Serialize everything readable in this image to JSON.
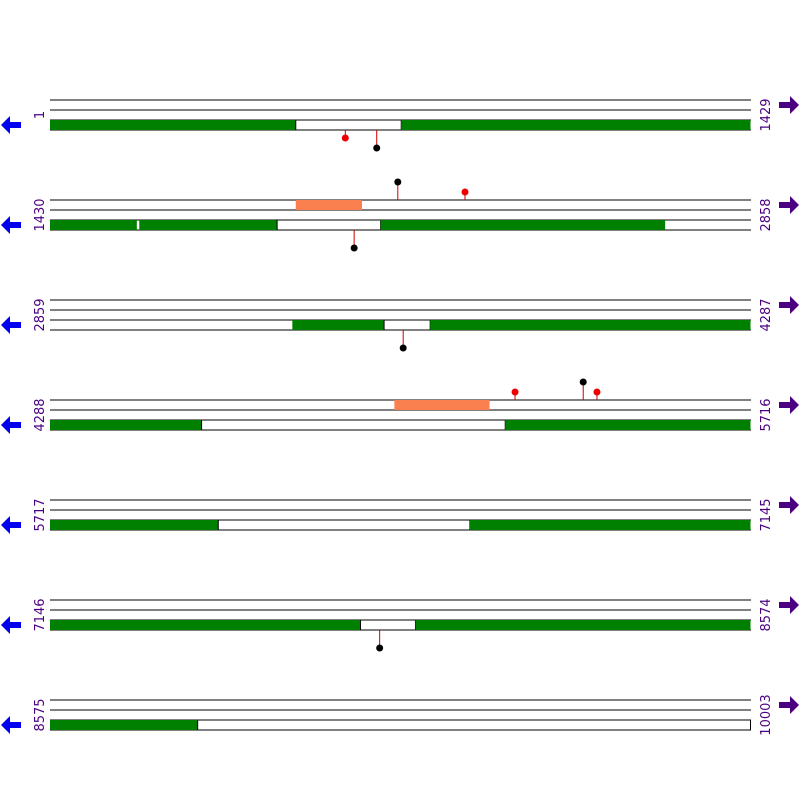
{
  "colors": {
    "background": "#ffffff",
    "track_line": "#000000",
    "segment_green": "#008000",
    "segment_salmon": "#fa8050",
    "stem": "#cc0000",
    "marker_red": "#ee0000",
    "marker_black": "#000000",
    "left_arrow": "#0000ee",
    "right_arrow": "#4b0082",
    "number_text": "#4b0082"
  },
  "icons": {
    "left": "arrow-left-icon",
    "right": "arrow-right-icon"
  },
  "chart_data": {
    "type": "sequence-map",
    "total_length": 10003,
    "rows": [
      {
        "start": 1,
        "end": 1429,
        "tracks": [
          [],
          [],
          [
            {
              "from": 1,
              "to": 502,
              "fill": "green"
            },
            {
              "from": 502,
              "to": 717,
              "fill": "white"
            },
            {
              "from": 717,
              "to": 1429,
              "fill": "green"
            }
          ]
        ],
        "markers": [
          {
            "pos": 603,
            "track": 2,
            "side": "below",
            "length": "short",
            "color": "red"
          },
          {
            "pos": 667,
            "track": 2,
            "side": "below",
            "length": "long",
            "color": "black"
          }
        ]
      },
      {
        "start": 1430,
        "end": 2858,
        "tracks": [
          [
            {
              "from": 1931,
              "to": 2066,
              "fill": "salmon"
            }
          ],
          [],
          [
            {
              "from": 1430,
              "to": 1607,
              "fill": "green"
            },
            {
              "from": 1612,
              "to": 1893,
              "fill": "green"
            },
            {
              "from": 1893,
              "to": 2104,
              "fill": "white"
            },
            {
              "from": 2104,
              "to": 2684,
              "fill": "green"
            }
          ]
        ],
        "markers": [
          {
            "pos": 2139,
            "track": 0,
            "side": "above",
            "length": "long",
            "color": "black"
          },
          {
            "pos": 2276,
            "track": 0,
            "side": "above",
            "length": "short",
            "color": "red"
          },
          {
            "pos": 2050,
            "track": 2,
            "side": "below",
            "length": "long",
            "color": "black"
          }
        ]
      },
      {
        "start": 2859,
        "end": 4287,
        "tracks": [
          [],
          [],
          [
            {
              "from": 3353,
              "to": 3540,
              "fill": "green"
            },
            {
              "from": 3540,
              "to": 3634,
              "fill": "white"
            },
            {
              "from": 3634,
              "to": 4287,
              "fill": "green"
            }
          ]
        ],
        "markers": [
          {
            "pos": 3579,
            "track": 2,
            "side": "below",
            "length": "long",
            "color": "black"
          }
        ]
      },
      {
        "start": 4288,
        "end": 5716,
        "tracks": [
          [
            {
              "from": 4990,
              "to": 5184,
              "fill": "salmon"
            }
          ],
          [],
          [
            {
              "from": 4288,
              "to": 4597,
              "fill": "green"
            },
            {
              "from": 4597,
              "to": 5216,
              "fill": "white"
            },
            {
              "from": 5216,
              "to": 5716,
              "fill": "green"
            }
          ]
        ],
        "markers": [
          {
            "pos": 5236,
            "track": 0,
            "side": "above",
            "length": "short",
            "color": "red"
          },
          {
            "pos": 5375,
            "track": 0,
            "side": "above",
            "length": "long",
            "color": "black"
          },
          {
            "pos": 5403,
            "track": 0,
            "side": "above",
            "length": "short",
            "color": "red"
          }
        ]
      },
      {
        "start": 5717,
        "end": 7145,
        "tracks": [
          [],
          [],
          [
            {
              "from": 5717,
              "to": 6060,
              "fill": "green"
            },
            {
              "from": 6060,
              "to": 6573,
              "fill": "white"
            },
            {
              "from": 6573,
              "to": 7145,
              "fill": "green"
            }
          ]
        ],
        "markers": []
      },
      {
        "start": 7146,
        "end": 8574,
        "tracks": [
          [],
          [],
          [
            {
              "from": 7146,
              "to": 7779,
              "fill": "green"
            },
            {
              "from": 7779,
              "to": 7891,
              "fill": "white"
            },
            {
              "from": 7891,
              "to": 8574,
              "fill": "green"
            }
          ]
        ],
        "markers": [
          {
            "pos": 7818,
            "track": 2,
            "side": "below",
            "length": "long",
            "color": "black"
          }
        ]
      },
      {
        "start": 8575,
        "end": 10003,
        "tracks": [
          [],
          [],
          [
            {
              "from": 8575,
              "to": 8876,
              "fill": "green"
            },
            {
              "from": 8876,
              "to": 10003,
              "fill": "white"
            }
          ]
        ],
        "markers": []
      }
    ]
  }
}
